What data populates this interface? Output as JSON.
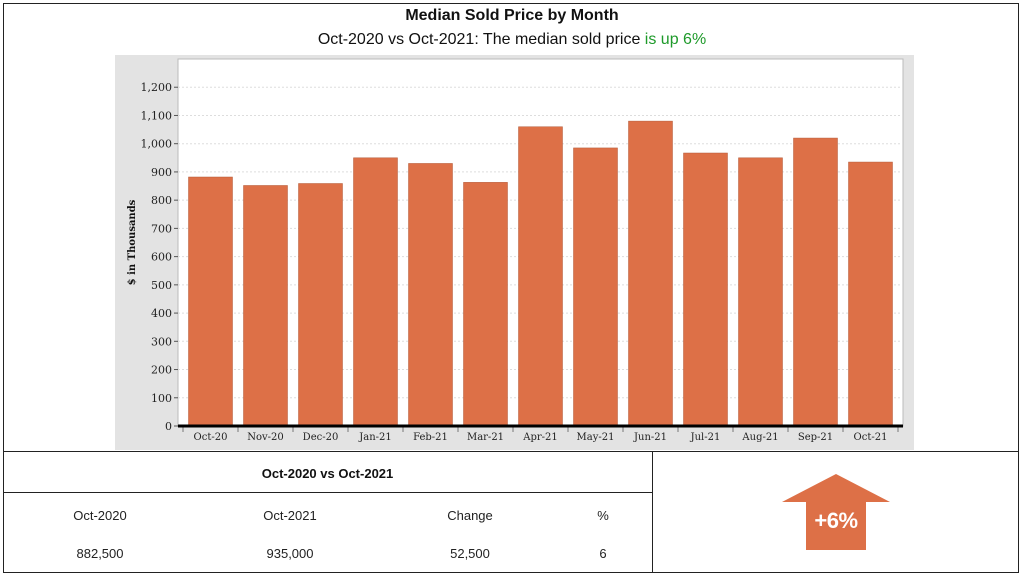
{
  "chart_data": {
    "type": "bar",
    "title": "Median Sold Price by Month",
    "subtitle_prefix": "Oct-2020 vs Oct-2021: The median sold price ",
    "subtitle_highlight": "is up 6%",
    "ylabel": "$ in Thousands",
    "xlabel": "",
    "categories": [
      "Oct-20",
      "Nov-20",
      "Dec-20",
      "Jan-21",
      "Feb-21",
      "Mar-21",
      "Apr-21",
      "May-21",
      "Jun-21",
      "Jul-21",
      "Aug-21",
      "Sep-21",
      "Oct-21"
    ],
    "values": [
      882,
      852,
      859,
      950,
      930,
      863,
      1060,
      985,
      1080,
      967,
      950,
      1020,
      935
    ],
    "ylim": [
      0,
      1300
    ],
    "yticks": [
      0,
      100,
      200,
      300,
      400,
      500,
      600,
      700,
      800,
      900,
      1000,
      1100,
      1200
    ],
    "ytick_labels": [
      "0",
      "100",
      "200",
      "300",
      "400",
      "500",
      "600",
      "700",
      "800",
      "900",
      "1,000",
      "1,100",
      "1,200"
    ],
    "grid": true,
    "bar_color": "#dd7047"
  },
  "summary": {
    "title": "Oct-2020 vs Oct-2021",
    "headers": [
      "Oct-2020",
      "Oct-2021",
      "Change",
      "%"
    ],
    "values": [
      "882,500",
      "935,000",
      "52,500",
      "6"
    ],
    "badge": "+6%",
    "badge_color": "#dd7047"
  }
}
